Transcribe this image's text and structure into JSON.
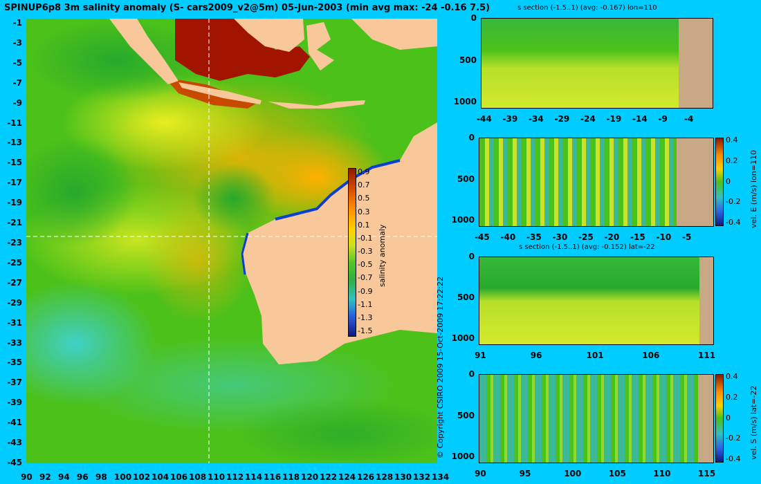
{
  "title": "SPINUP6p8 3m salinity anomaly (S- cars2009_v2@5m) 05-Jun-2003 (min avg max: -24 -0.16 7.5)",
  "copyright": "© Copyright CSIRO 2009  15-Oct-2009 17:22:22",
  "map": {
    "x_ticks": [
      "90",
      "92",
      "94",
      "96",
      "98",
      "100",
      "102",
      "104",
      "106",
      "108",
      "110",
      "112",
      "114",
      "116",
      "118",
      "120",
      "122",
      "124",
      "126",
      "128",
      "130",
      "132",
      "134"
    ],
    "y_ticks": [
      "-1",
      "-3",
      "-5",
      "-7",
      "-9",
      "-11",
      "-13",
      "-15",
      "-17",
      "-19",
      "-21",
      "-23",
      "-25",
      "-27",
      "-29",
      "-31",
      "-33",
      "-35",
      "-37",
      "-39",
      "-41",
      "-43",
      "-45"
    ],
    "colorbar": {
      "label": "salinity anomaly",
      "ticks": [
        "0.9",
        "0.7",
        "0.5",
        "0.3",
        "0.1",
        "-0.1",
        "-0.3",
        "-0.5",
        "-0.7",
        "-0.9",
        "-1.1",
        "-1.3",
        "-1.5"
      ]
    },
    "crosshair": {
      "lon": 110,
      "lat": -22
    },
    "colors": {
      "land": "#f9c89a",
      "ocean_base": "#4cc11a"
    }
  },
  "panels": [
    {
      "title": "s section (-1.5..1) (avg: -0.167) lon=110",
      "x_ticks": [
        "-44",
        "-39",
        "-34",
        "-29",
        "-24",
        "-19",
        "-14",
        "-9",
        "-4"
      ],
      "y_ticks": [
        "0",
        "500",
        "1000"
      ],
      "colorbar": null
    },
    {
      "title": "",
      "x_ticks": [
        "-45",
        "-40",
        "-35",
        "-30",
        "-25",
        "-20",
        "-15",
        "-10",
        "-5"
      ],
      "y_ticks": [
        "0",
        "500",
        "1000"
      ],
      "colorbar": {
        "label": "vel. E (m/s) lon=110",
        "ticks": [
          "0.4",
          "0.2",
          "0",
          "-0.2",
          "-0.4"
        ]
      }
    },
    {
      "title": "s section (-1.5..1) (avg: -0.152) lat=-22",
      "x_ticks": [
        "91",
        "96",
        "101",
        "106",
        "111"
      ],
      "y_ticks": [
        "0",
        "500",
        "1000"
      ],
      "colorbar": null
    },
    {
      "title": "",
      "x_ticks": [
        "90",
        "95",
        "100",
        "105",
        "110",
        "115"
      ],
      "y_ticks": [
        "0",
        "500",
        "1000"
      ],
      "colorbar": {
        "label": "vel. S (m/s) lat=-22",
        "ticks": [
          "0.4",
          "0.2",
          "0",
          "-0.2",
          "-0.4"
        ]
      }
    }
  ]
}
